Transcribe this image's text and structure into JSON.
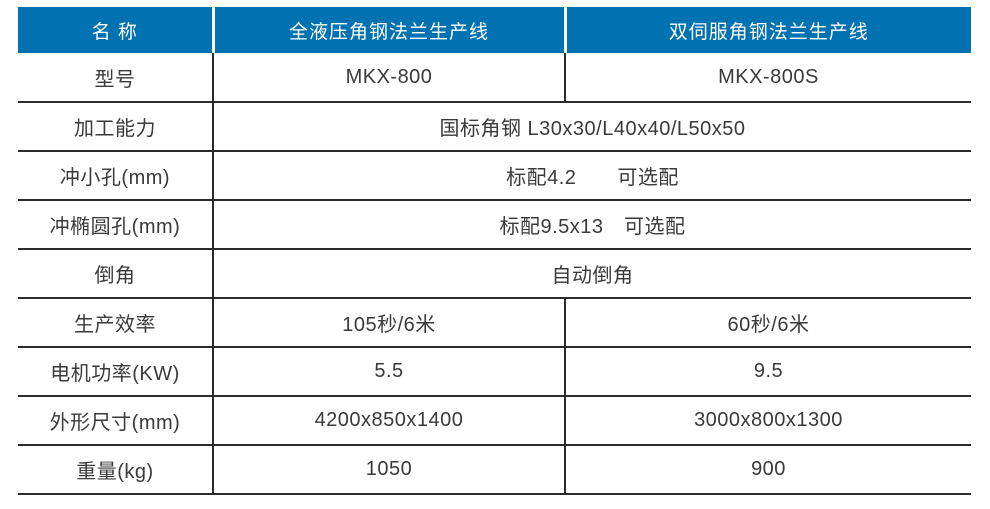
{
  "theme": {
    "header_bg": "#0072b1",
    "header_fg": "#ffffff",
    "border": "#2b2b2b",
    "text": "#3a3a3a",
    "page_bg": "#ffffff"
  },
  "table": {
    "header": {
      "name": "名 称",
      "product1": "全液压角钢法兰生产线",
      "product2": "双伺服角钢法兰生产线"
    },
    "rows": [
      {
        "label": "型号",
        "col1": "MKX-800",
        "col2": "MKX-800S"
      },
      {
        "label": "加工能力",
        "merged": "国标角钢 L30x30/L40x40/L50x50"
      },
      {
        "label": "冲小孔(mm)",
        "merged": "标配4.2　　可选配"
      },
      {
        "label": "冲椭圆孔(mm)",
        "merged": "标配9.5x13　可选配"
      },
      {
        "label": "倒角",
        "merged": "自动倒角"
      },
      {
        "label": "生产效率",
        "col1": "105秒/6米",
        "col2": "60秒/6米"
      },
      {
        "label": "电机功率(KW)",
        "col1": "5.5",
        "col2": "9.5"
      },
      {
        "label": "外形尺寸(mm)",
        "col1": "4200x850x1400",
        "col2": "3000x800x1300"
      },
      {
        "label": "重量(kg)",
        "col1": "1050",
        "col2": "900"
      }
    ]
  }
}
